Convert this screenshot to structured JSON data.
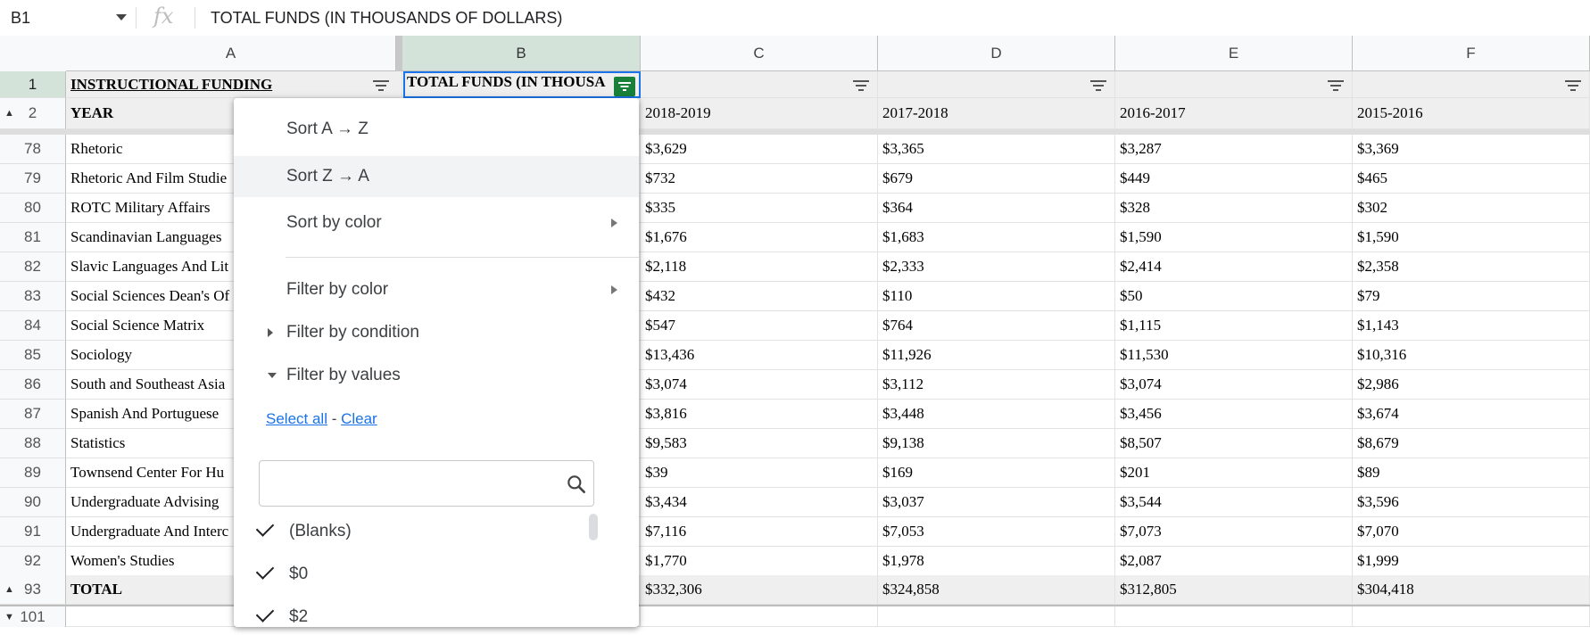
{
  "formula_bar": {
    "cell_ref": "B1",
    "fx": "fx",
    "content": "TOTAL FUNDS (IN THOUSANDS OF DOLLARS)"
  },
  "columns": [
    "A",
    "B",
    "C",
    "D",
    "E",
    "F"
  ],
  "header_rows": [
    {
      "num": "1",
      "a": "INSTRUCTIONAL FUNDING",
      "b": "TOTAL FUNDS (IN THOUSA",
      "c": "",
      "d": "",
      "e": "",
      "f": ""
    },
    {
      "num": "2",
      "a": "YEAR",
      "c": "2018-2019",
      "d": "2017-2018",
      "e": "2016-2017",
      "f": "2015-2016"
    }
  ],
  "rows": [
    {
      "num": "78",
      "a": "Rhetoric",
      "c": "$3,629",
      "d": "$3,365",
      "e": "$3,287",
      "f": "$3,369"
    },
    {
      "num": "79",
      "a": "Rhetoric And Film Studie",
      "c": "$732",
      "d": "$679",
      "e": "$449",
      "f": "$465"
    },
    {
      "num": "80",
      "a": "ROTC Military Affairs",
      "c": "$335",
      "d": "$364",
      "e": "$328",
      "f": "$302"
    },
    {
      "num": "81",
      "a": "Scandinavian Languages",
      "c": "$1,676",
      "d": "$1,683",
      "e": "$1,590",
      "f": "$1,590"
    },
    {
      "num": "82",
      "a": "Slavic Languages And Lit",
      "c": "$2,118",
      "d": "$2,333",
      "e": "$2,414",
      "f": "$2,358"
    },
    {
      "num": "83",
      "a": "Social Sciences Dean's Of",
      "c": "$432",
      "d": "$110",
      "e": "$50",
      "f": "$79"
    },
    {
      "num": "84",
      "a": "Social Science Matrix",
      "c": "$547",
      "d": "$764",
      "e": "$1,115",
      "f": "$1,143"
    },
    {
      "num": "85",
      "a": "Sociology",
      "c": "$13,436",
      "d": "$11,926",
      "e": "$11,530",
      "f": "$10,316"
    },
    {
      "num": "86",
      "a": "South and Southeast Asia",
      "c": "$3,074",
      "d": "$3,112",
      "e": "$3,074",
      "f": "$2,986"
    },
    {
      "num": "87",
      "a": "Spanish And Portuguese",
      "c": "$3,816",
      "d": "$3,448",
      "e": "$3,456",
      "f": "$3,674"
    },
    {
      "num": "88",
      "a": "Statistics",
      "c": "$9,583",
      "d": "$9,138",
      "e": "$8,507",
      "f": "$8,679"
    },
    {
      "num": "89",
      "a": "Townsend Center For Hu",
      "c": "$39",
      "d": "$169",
      "e": "$201",
      "f": "$89"
    },
    {
      "num": "90",
      "a": "Undergraduate Advising",
      "c": "$3,434",
      "d": "$3,037",
      "e": "$3,544",
      "f": "$3,596"
    },
    {
      "num": "91",
      "a": "Undergraduate And Interc",
      "c": "$7,116",
      "d": "$7,053",
      "e": "$7,073",
      "f": "$7,070"
    },
    {
      "num": "92",
      "a": "Women's Studies",
      "c": "$1,770",
      "d": "$1,978",
      "e": "$2,087",
      "f": "$1,999"
    }
  ],
  "total_row": {
    "num": "93",
    "a": "TOTAL",
    "c": "$332,306",
    "d": "$324,858",
    "e": "$312,805",
    "f": "$304,418"
  },
  "last_row": {
    "num": "101"
  },
  "filter_menu": {
    "sort_az": "Sort A → Z",
    "sort_za": "Sort Z → A",
    "sort_by_color": "Sort by color",
    "filter_by_color": "Filter by color",
    "filter_by_condition": "Filter by condition",
    "filter_by_values": "Filter by values",
    "select_all": "Select all",
    "separator": " - ",
    "clear": "Clear",
    "search_placeholder": "",
    "values": [
      "(Blanks)",
      "$0",
      "$2"
    ]
  },
  "colors": {
    "accent_green": "#188038",
    "selection_blue": "#1a73e8",
    "header_selected": "#d3e3d9"
  }
}
